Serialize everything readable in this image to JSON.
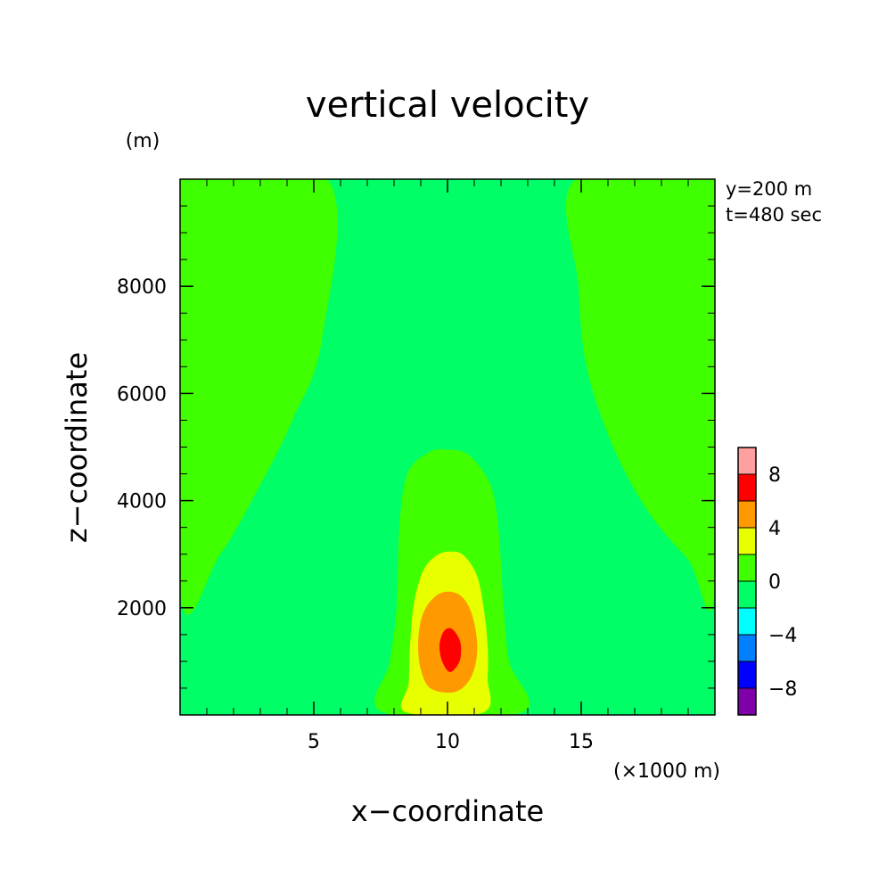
{
  "chart_data": {
    "type": "contour",
    "title": "vertical velocity",
    "xlabel": "x−coordinate",
    "ylabel": "z−coordinate",
    "x_unit": "(×1000 m)",
    "y_unit": "(m)",
    "xlim": [
      0,
      20
    ],
    "ylim": [
      0,
      10000
    ],
    "x_ticks": [
      5,
      10,
      15
    ],
    "x_tick_labels": [
      "5",
      "10",
      "15"
    ],
    "y_ticks": [
      2000,
      4000,
      6000,
      8000
    ],
    "y_tick_labels": [
      "2000",
      "4000",
      "6000",
      "8000"
    ],
    "annotations": [
      "y=200 m",
      "t=480 sec"
    ],
    "colorbar": {
      "levels": [
        -10,
        -8,
        -6,
        -4,
        -2,
        0,
        2,
        4,
        6,
        8,
        10
      ],
      "colors": [
        "#7f00a8",
        "#0000ff",
        "#0080ff",
        "#00ffff",
        "#00ff66",
        "#40ff00",
        "#e8ff00",
        "#ff9900",
        "#ff0000",
        "#ffa0a0"
      ],
      "tick_values": [
        -8,
        -4,
        0,
        4,
        8
      ],
      "tick_labels": [
        "−8",
        "−4",
        "0",
        "4",
        "8"
      ]
    },
    "regions": [
      {
        "level": "0 to 2",
        "color": "#40ff00",
        "polygons": [
          [
            [
              0,
              10000
            ],
            [
              5.5,
              10000
            ],
            [
              5.3,
              7000
            ],
            [
              4.2,
              5500
            ],
            [
              3,
              4300
            ],
            [
              1.5,
              3000
            ],
            [
              0,
              2300
            ]
          ],
          [
            [
              14.8,
              10000
            ],
            [
              20,
              10000
            ],
            [
              20,
              2400
            ],
            [
              19,
              2900
            ],
            [
              17.5,
              3800
            ],
            [
              16.2,
              5000
            ],
            [
              15.2,
              6500
            ],
            [
              14.9,
              8000
            ]
          ],
          [
            [
              7.6,
              50
            ],
            [
              7.85,
              1000
            ],
            [
              8.1,
              2000
            ],
            [
              8.2,
              3500
            ],
            [
              8.5,
              4500
            ],
            [
              9.3,
              4900
            ],
            [
              10,
              4950
            ],
            [
              10.8,
              4850
            ],
            [
              11.6,
              4300
            ],
            [
              11.9,
              3500
            ],
            [
              12.1,
              2000
            ],
            [
              12.3,
              1000
            ],
            [
              12.8,
              50
            ]
          ]
        ]
      },
      {
        "level": "2 to 4",
        "color": "#e8ff00",
        "polygons": [
          [
            [
              8.45,
              50
            ],
            [
              8.55,
              600
            ],
            [
              8.6,
              1300
            ],
            [
              8.75,
              2100
            ],
            [
              9.1,
              2700
            ],
            [
              9.6,
              2980
            ],
            [
              10.1,
              3050
            ],
            [
              10.6,
              2980
            ],
            [
              11.1,
              2600
            ],
            [
              11.35,
              2000
            ],
            [
              11.5,
              1300
            ],
            [
              11.5,
              700
            ],
            [
              11.35,
              50
            ]
          ]
        ]
      },
      {
        "level": "4 to 6",
        "color": "#ff9900",
        "polygons": [
          [
            [
              9.35,
              500
            ],
            [
              9.0,
              850
            ],
            [
              8.9,
              1300
            ],
            [
              9.0,
              1750
            ],
            [
              9.25,
              2050
            ],
            [
              9.65,
              2250
            ],
            [
              10.1,
              2300
            ],
            [
              10.55,
              2200
            ],
            [
              10.9,
              1900
            ],
            [
              11.1,
              1400
            ],
            [
              11.05,
              950
            ],
            [
              10.75,
              600
            ],
            [
              10.2,
              420
            ]
          ]
        ]
      },
      {
        "level": "6 to 8",
        "color": "#ff0000",
        "polygons": [
          [
            [
              10.1,
              800
            ],
            [
              9.8,
              1000
            ],
            [
              9.7,
              1300
            ],
            [
              9.85,
              1550
            ],
            [
              10.1,
              1620
            ],
            [
              10.35,
              1500
            ],
            [
              10.5,
              1300
            ],
            [
              10.45,
              1000
            ]
          ]
        ]
      }
    ],
    "background_level": "-2 to 0",
    "background_color": "#00ff66"
  }
}
